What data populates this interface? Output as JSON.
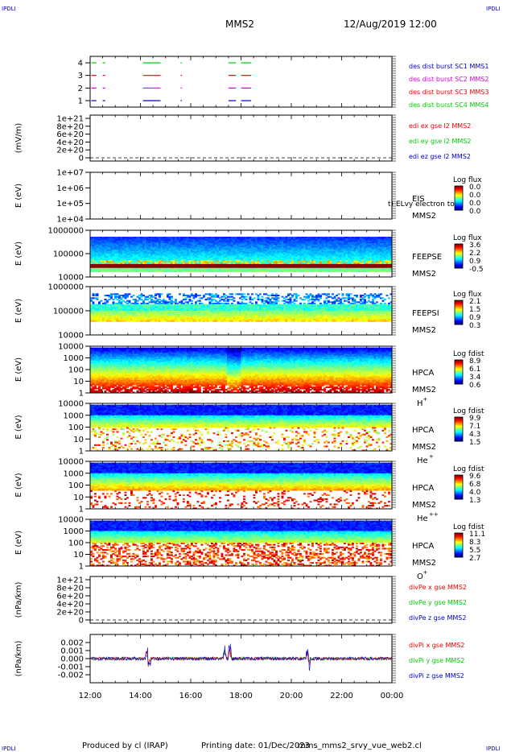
{
  "header": {
    "corner_tl": "IPDLI",
    "corner_tr": "IPDLI",
    "corner_bl": "IPDLI",
    "corner_br": "IPDLI",
    "spacecraft": "MMS2",
    "datetime": "12/Aug/2019 12:00"
  },
  "footer": {
    "produced_by": "Produced by cl (IRAP)",
    "printing_date": "Printing date: 01/Dec/2023",
    "filename": "mms_mms2_srvy_vue_web2.cl"
  },
  "x_axis": {
    "ticks": [
      "12:00",
      "14:00",
      "16:00",
      "18:00",
      "20:00",
      "22:00",
      "00:00"
    ],
    "range_hours": [
      12,
      24
    ]
  },
  "colors": {
    "green": "#00cc00",
    "magenta": "#dd00dd",
    "red": "#ee0000",
    "blue": "#0000cc"
  },
  "chart_data": [
    {
      "type": "timeline",
      "id": "burst",
      "yticks": [
        "4",
        "3",
        "2",
        "1"
      ],
      "legend": [
        {
          "label": "des dist burst SC1 MMS1",
          "color": "#0000cc"
        },
        {
          "label": "des dist burst SC2 MMS2",
          "color": "#dd00dd"
        },
        {
          "label": "des dist burst SC3 MMS3",
          "color": "#ee0000"
        },
        {
          "label": "des dist burst SC4 MMS4",
          "color": "#00cc00"
        }
      ],
      "intervals_hours": [
        [
          12.05,
          12.25
        ],
        [
          12.5,
          12.6
        ],
        [
          14.1,
          14.8
        ],
        [
          15.6,
          15.65
        ],
        [
          17.5,
          17.8
        ],
        [
          18.0,
          18.4
        ]
      ]
    },
    {
      "type": "line",
      "id": "edi",
      "ylabel": "(mV/m)",
      "yticks": [
        "1e+21",
        "8e+20",
        "6e+20",
        "4e+20",
        "2e+20",
        "0"
      ],
      "legend": [
        {
          "label": "edi ex gse l2 MMS2",
          "color": "#ee0000"
        },
        {
          "label": "edi ey gse l2 MMS2",
          "color": "#00cc00"
        },
        {
          "label": "edi ez gse l2 MMS2",
          "color": "#0000cc"
        }
      ]
    },
    {
      "type": "heatmap",
      "id": "eis",
      "ylabel": "E (eV)",
      "yticks": [
        "1e+07",
        "1e+06",
        "1e+05",
        "1e+04"
      ],
      "labels": [
        "EIS",
        "MMS2"
      ],
      "overlay_text": "t) ELvy electron to",
      "cbar_title": "Log flux",
      "cbar_ticks": [
        "0.0",
        "0.0",
        "0.0",
        "0.0"
      ]
    },
    {
      "type": "heatmap",
      "id": "feepse",
      "ylabel": "E (eV)",
      "yticks": [
        "1000000",
        "100000",
        "10000"
      ],
      "labels": [
        "FEEPSE",
        "MMS2"
      ],
      "cbar_title": "Log flux",
      "cbar_ticks": [
        "3.6",
        "2.2",
        "0.9",
        "-0.5"
      ]
    },
    {
      "type": "heatmap",
      "id": "feepsi",
      "ylabel": "E (eV)",
      "yticks": [
        "1000000",
        "100000",
        "10000"
      ],
      "labels": [
        "FEEPSI",
        "MMS2"
      ],
      "cbar_title": "Log flux",
      "cbar_ticks": [
        "2.1",
        "1.5",
        "0.9",
        "0.3"
      ]
    },
    {
      "type": "heatmap",
      "id": "hpca_h",
      "ylabel": "E (eV)",
      "yticks": [
        "10000",
        "1000",
        "100",
        "10",
        "1"
      ],
      "labels": [
        "HPCA",
        "MMS2",
        "H"
      ],
      "species_sup": "+",
      "cbar_title": "Log fdist",
      "cbar_ticks": [
        "8.9",
        "6.1",
        "3.4",
        "0.6"
      ]
    },
    {
      "type": "heatmap",
      "id": "hpca_he",
      "ylabel": "E (eV)",
      "yticks": [
        "10000",
        "1000",
        "100",
        "10",
        "1"
      ],
      "labels": [
        "HPCA",
        "MMS2",
        "He"
      ],
      "species_sup": "+",
      "cbar_title": "Log fdist",
      "cbar_ticks": [
        "9.9",
        "7.1",
        "4.3",
        "1.5"
      ]
    },
    {
      "type": "heatmap",
      "id": "hpca_hepp",
      "ylabel": "E (eV)",
      "yticks": [
        "10000",
        "1000",
        "100",
        "10",
        "1"
      ],
      "labels": [
        "HPCA",
        "MMS2",
        "He"
      ],
      "species_sup": "++",
      "cbar_title": "Log fdist",
      "cbar_ticks": [
        "9.6",
        "6.8",
        "4.0",
        "1.3"
      ]
    },
    {
      "type": "heatmap",
      "id": "hpca_o",
      "ylabel": "E (eV)",
      "yticks": [
        "10000",
        "1000",
        "100",
        "10",
        "1"
      ],
      "labels": [
        "HPCA",
        "MMS2",
        "O"
      ],
      "species_sup": "+",
      "cbar_title": "Log fdist",
      "cbar_ticks": [
        "11.1",
        "8.3",
        "5.5",
        "2.7"
      ]
    },
    {
      "type": "line",
      "id": "divpe",
      "ylabel": "(nPa/km)",
      "yticks": [
        "1e+21",
        "8e+20",
        "6e+20",
        "4e+20",
        "2e+20",
        "0"
      ],
      "legend": [
        {
          "label": "divPe x gse MMS2",
          "color": "#ee0000"
        },
        {
          "label": "divPe y gse MMS2",
          "color": "#00cc00"
        },
        {
          "label": "divPe z gse MMS2",
          "color": "#0000cc"
        }
      ]
    },
    {
      "type": "line",
      "id": "divpi",
      "ylabel": "(nPa/km)",
      "yticks": [
        "0.002",
        "0.001",
        "0.000",
        "-0.001",
        "-0.002"
      ],
      "ylim": [
        -0.0025,
        0.0025
      ],
      "legend": [
        {
          "label": "divPi x gse MMS2",
          "color": "#ee0000"
        },
        {
          "label": "divPi y gse MMS2",
          "color": "#00cc00"
        },
        {
          "label": "divPi z gse MMS2",
          "color": "#0000cc"
        }
      ],
      "spikes_hours": [
        [
          14.25,
          0.0014
        ],
        [
          14.35,
          -0.0011
        ],
        [
          17.35,
          0.0015
        ],
        [
          17.55,
          0.0018
        ],
        [
          20.65,
          0.0012
        ],
        [
          20.7,
          -0.0015
        ]
      ]
    }
  ]
}
